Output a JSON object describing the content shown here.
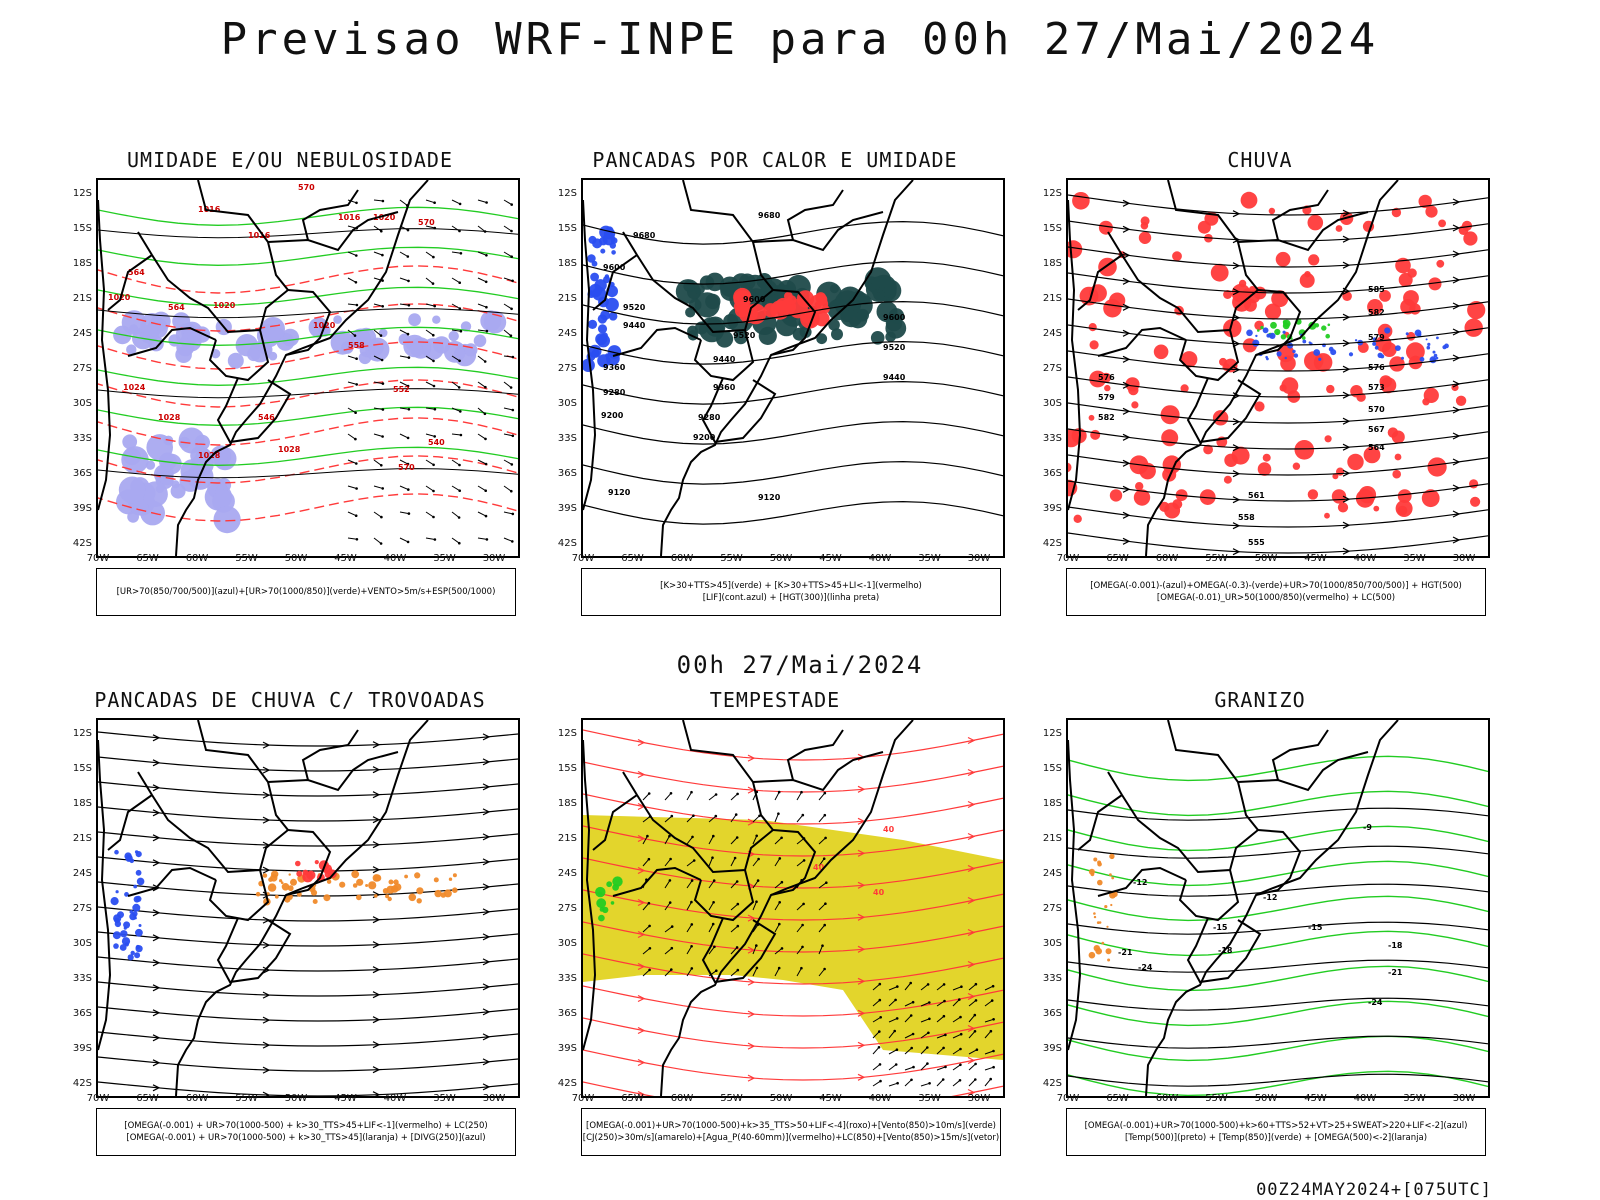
{
  "main_title": "Previsao WRF-INPE  para 00h 27/Mai/2024",
  "mid_title": "00h 27/Mai/2024",
  "footer": "00Z24MAY2024+[075UTC]",
  "lat_labels": [
    "12S",
    "15S",
    "18S",
    "21S",
    "24S",
    "27S",
    "30S",
    "33S",
    "36S",
    "39S",
    "42S"
  ],
  "lon_labels": [
    "70W",
    "65W",
    "60W",
    "55W",
    "50W",
    "45W",
    "40W",
    "35W",
    "30W"
  ],
  "colors": {
    "blue": "#2a4ef0",
    "green": "#22cc22",
    "red": "#ff3a3a",
    "dark_teal": "#1f4a4a",
    "yellow": "#e3d52c",
    "orange": "#f08a2a",
    "lavender": "#a9a9f0",
    "black": "#000000"
  },
  "panels": [
    {
      "title": "UMIDADE E/OU NEBULOSIDADE",
      "legend": [
        "[UR>70(850/700/500)](azul)+[UR>70(1000/850)](verde)+VENTO>5m/s+ESP(500/1000)"
      ],
      "contour_labels": [
        "1016",
        "1016",
        "1016",
        "1020",
        "1020",
        "1020",
        "1020",
        "1024",
        "1028",
        "1028",
        "1028",
        "570",
        "570",
        "570",
        "564",
        "564",
        "558",
        "552",
        "546",
        "540"
      ]
    },
    {
      "title": "PANCADAS POR CALOR E UMIDADE",
      "legend": [
        "[K>30+TTS>45](verde) + [K>30+TTS>45+LI<-1](vermelho)",
        "[LIF](cont.azul) + [HGT(300)](linha preta)"
      ],
      "contour_labels": [
        "9680",
        "9680",
        "9600",
        "9520",
        "9440",
        "9360",
        "9280",
        "9200",
        "9120",
        "9600",
        "9520",
        "9440",
        "9360",
        "9280",
        "9200",
        "9120",
        "9600",
        "9520",
        "9440"
      ]
    },
    {
      "title": "CHUVA",
      "legend": [
        "[OMEGA(-0.001)-(azul)+OMEGA(-0.3)-(verde)+UR>70(1000/850/700/500)] + HGT(500)",
        "[OMEGA(-0.01)_UR>50(1000/850)(vermelho) + LC(500)"
      ],
      "contour_labels": [
        "585",
        "582",
        "579",
        "576",
        "573",
        "570",
        "567",
        "564",
        "561",
        "558",
        "555",
        "576",
        "579",
        "582"
      ]
    },
    {
      "title": "PANCADAS DE CHUVA C/ TROVOADAS",
      "legend": [
        "[OMEGA(-0.001) + UR>70(1000-500) + k>30_TTS>45+LIF<-1](vermelho) + LC(250)",
        "[OMEGA(-0.001) + UR>70(1000-500) + k>30_TTS>45](laranja) + [DIVG(250)](azul)"
      ],
      "contour_labels": []
    },
    {
      "title": "TEMPESTADE",
      "legend": [
        "[OMEGA(-0.001)+UR>70(1000-500)+k>35_TTS>50+LIF<-4](roxo)+[Vento(850)>10m/s](verde)",
        "[CJ(250)>30m/s](amarelo)+[Agua_P(40-60mm)](vermelho)+LC(850)+[Vento(850)>15m/s](vetor)"
      ],
      "contour_labels": [
        "40",
        "40",
        "40"
      ]
    },
    {
      "title": "GRANIZO",
      "legend": [
        "[OMEGA(-0.001)+UR>70(1000-500)+k>60+TTS>52+VT>25+SWEAT>220+LIF<-2](azul)",
        "[Temp(500)](preto) + [Temp(850)](verde) + [OMEGA(500)<-2](laranja)"
      ],
      "contour_labels": [
        "-12",
        "-15",
        "-15",
        "-18",
        "-18",
        "-21",
        "-21",
        "-24",
        "-24",
        "-9",
        "-12"
      ]
    }
  ]
}
